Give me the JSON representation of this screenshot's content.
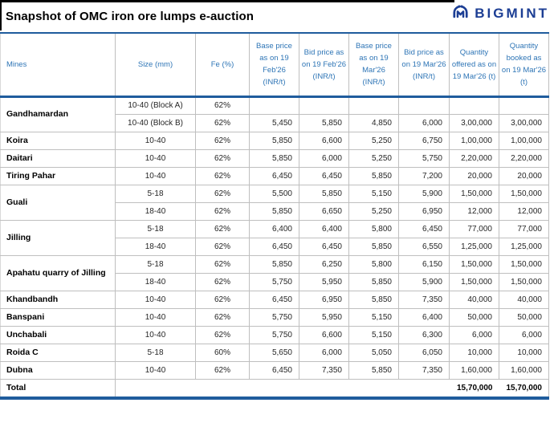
{
  "title": "Snapshot of OMC iron ore lumps e-auction",
  "logo": {
    "text": "BIGMINT",
    "color": "#1c3e94",
    "icon": "bigmint-m-circle-icon"
  },
  "colors": {
    "header_text": "#2e75b6",
    "thick_border": "#1f5c9d",
    "grid_line": "#bfbfbf",
    "title_text": "#000000"
  },
  "table": {
    "headers": [
      "Mines",
      "Size (mm)",
      "Fe (%)",
      "Base price as on 19 Feb'26 (INR/t)",
      "Bid price as on 19 Feb'26 (INR/t)",
      "Base price as on 19 Mar'26 (INR/t)",
      "Bid price as on 19 Mar'26 (INR/t)",
      "Quantity offered as on 19 Mar'26 (t)",
      "Quantity booked as on 19 Mar'26 (t)"
    ],
    "groups": [
      {
        "mine": "Gandhamardan",
        "rows": [
          [
            "10-40 (Block A)",
            "62%",
            "",
            "",
            "",
            "",
            "",
            ""
          ],
          [
            "10-40 (Block B)",
            "62%",
            "5,450",
            "5,850",
            "4,850",
            "6,000",
            "3,00,000",
            "3,00,000"
          ]
        ]
      },
      {
        "mine": "Koira",
        "rows": [
          [
            "10-40",
            "62%",
            "5,850",
            "6,600",
            "5,250",
            "6,750",
            "1,00,000",
            "1,00,000"
          ]
        ]
      },
      {
        "mine": "Daitari",
        "rows": [
          [
            "10-40",
            "62%",
            "5,850",
            "6,000",
            "5,250",
            "5,750",
            "2,20,000",
            "2,20,000"
          ]
        ]
      },
      {
        "mine": "Tiring Pahar",
        "rows": [
          [
            "10-40",
            "62%",
            "6,450",
            "6,450",
            "5,850",
            "7,200",
            "20,000",
            "20,000"
          ]
        ]
      },
      {
        "mine": "Guali",
        "rows": [
          [
            "5-18",
            "62%",
            "5,500",
            "5,850",
            "5,150",
            "5,900",
            "1,50,000",
            "1,50,000"
          ],
          [
            "18-40",
            "62%",
            "5,850",
            "6,650",
            "5,250",
            "6,950",
            "12,000",
            "12,000"
          ]
        ]
      },
      {
        "mine": "Jilling",
        "rows": [
          [
            "5-18",
            "62%",
            "6,400",
            "6,400",
            "5,800",
            "6,450",
            "77,000",
            "77,000"
          ],
          [
            "18-40",
            "62%",
            "6,450",
            "6,450",
            "5,850",
            "6,550",
            "1,25,000",
            "1,25,000"
          ]
        ]
      },
      {
        "mine": "Apahatu quarry of Jilling",
        "rows": [
          [
            "5-18",
            "62%",
            "5,850",
            "6,250",
            "5,800",
            "6,150",
            "1,50,000",
            "1,50,000"
          ],
          [
            "18-40",
            "62%",
            "5,750",
            "5,950",
            "5,850",
            "5,900",
            "1,50,000",
            "1,50,000"
          ]
        ]
      },
      {
        "mine": "Khandbandh",
        "rows": [
          [
            "10-40",
            "62%",
            "6,450",
            "6,950",
            "5,850",
            "7,350",
            "40,000",
            "40,000"
          ]
        ]
      },
      {
        "mine": "Banspani",
        "rows": [
          [
            "10-40",
            "62%",
            "5,750",
            "5,950",
            "5,150",
            "6,400",
            "50,000",
            "50,000"
          ]
        ]
      },
      {
        "mine": "Unchabali",
        "rows": [
          [
            "10-40",
            "62%",
            "5,750",
            "6,600",
            "5,150",
            "6,300",
            "6,000",
            "6,000"
          ]
        ]
      },
      {
        "mine": "Roida C",
        "rows": [
          [
            "5-18",
            "60%",
            "5,650",
            "6,000",
            "5,050",
            "6,050",
            "10,000",
            "10,000"
          ]
        ]
      },
      {
        "mine": "Dubna",
        "rows": [
          [
            "10-40",
            "62%",
            "6,450",
            "7,350",
            "5,850",
            "7,350",
            "1,60,000",
            "1,60,000"
          ]
        ]
      }
    ],
    "total": {
      "label": "Total",
      "qty_offered": "15,70,000",
      "qty_booked": "15,70,000"
    }
  }
}
